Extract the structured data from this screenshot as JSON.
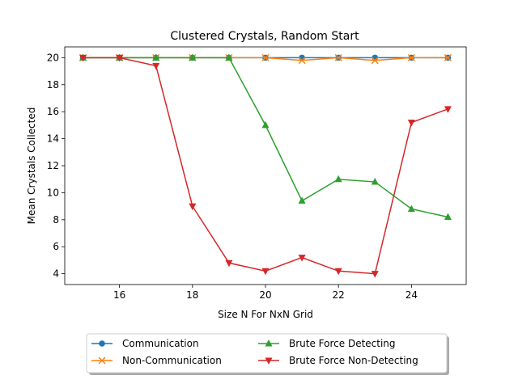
{
  "chart_data": {
    "type": "line",
    "title": "Clustered Crystals, Random Start",
    "xlabel": "Size N For NxN Grid",
    "ylabel": "Mean Crystals Collected",
    "xlim": [
      14.5,
      25.5
    ],
    "ylim": [
      3.2,
      20.8
    ],
    "xticks": [
      16,
      18,
      20,
      22,
      24
    ],
    "yticks": [
      4,
      6,
      8,
      10,
      12,
      14,
      16,
      18,
      20
    ],
    "grid": false,
    "legend_position": "bottom-center",
    "x": [
      15,
      16,
      17,
      18,
      19,
      20,
      21,
      22,
      23,
      24,
      25
    ],
    "series": [
      {
        "name": "Communication",
        "marker": "circle",
        "color": "#1f77b4",
        "values": [
          20,
          20,
          20,
          20,
          20,
          20,
          20,
          20,
          20,
          20,
          20
        ]
      },
      {
        "name": "Non-Communication",
        "marker": "x",
        "color": "#ff7f0e",
        "values": [
          20,
          20,
          20,
          20,
          20,
          20,
          19.8,
          20,
          19.8,
          20,
          20
        ]
      },
      {
        "name": "Brute Force Detecting",
        "marker": "triangle-up",
        "color": "#2ca02c",
        "values": [
          20,
          20,
          20,
          20,
          20,
          15,
          9.4,
          11,
          10.8,
          8.8,
          8.2
        ]
      },
      {
        "name": "Brute Force Non-Detecting",
        "marker": "triangle-down",
        "color": "#d62728",
        "values": [
          20,
          20,
          19.4,
          9,
          4.8,
          4.2,
          5.2,
          4.2,
          4,
          15.2,
          16.2
        ]
      }
    ]
  }
}
